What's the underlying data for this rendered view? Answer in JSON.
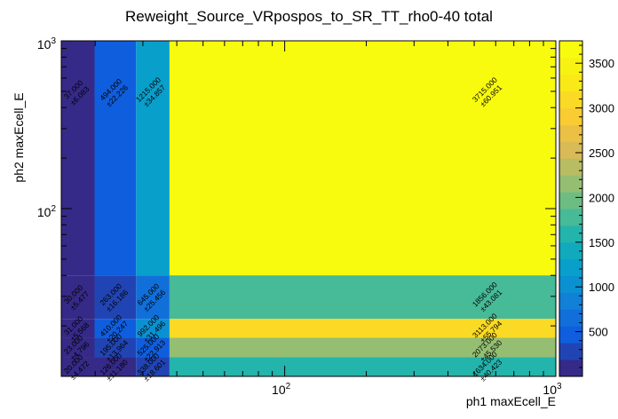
{
  "chart_data": {
    "type": "heatmap",
    "title": "Reweight_Source_VRpospos_to_SR_TT_rho0-40 total",
    "xlabel": "ph1 maxEcell_E",
    "ylabel": "ph2 maxEcell_E",
    "xscale": "log",
    "yscale": "log",
    "xlim": [
      15,
      1000
    ],
    "ylim": [
      10,
      1000
    ],
    "x_ticks": [
      {
        "value": 100,
        "base": "10",
        "exp": "2"
      },
      {
        "value": 1000,
        "base": "10",
        "exp": "3"
      }
    ],
    "y_ticks": [
      {
        "value": 100,
        "base": "10",
        "exp": "2"
      },
      {
        "value": 1000,
        "base": "10",
        "exp": "3"
      }
    ],
    "x_edges": [
      15,
      19.9,
      28.3,
      37.6,
      1000
    ],
    "y_edges": [
      10,
      13,
      17,
      22,
      40,
      1000
    ],
    "z_range": [
      0,
      3750
    ],
    "colorbar_ticks": [
      "500",
      "1000",
      "1500",
      "2000",
      "2500",
      "3000",
      "3500"
    ],
    "colorbar_tick_values": [
      500,
      1000,
      1500,
      2000,
      2500,
      3000,
      3500
    ],
    "cells": [
      {
        "xi": 3,
        "yi": 4,
        "value": 3715,
        "text": "3715.000",
        "err": "±60.951"
      },
      {
        "xi": 3,
        "yi": 3,
        "value": 1856,
        "text": "1856.000",
        "err": "±43.081"
      },
      {
        "xi": 3,
        "yi": 2,
        "value": 3113,
        "text": "3113.000",
        "err": "±55.794"
      },
      {
        "xi": 3,
        "yi": 1,
        "value": 2073,
        "text": "2073.000",
        "err": "±45.530"
      },
      {
        "xi": 3,
        "yi": 0,
        "value": 1634,
        "text": "1634.000",
        "err": "±40.423"
      },
      {
        "xi": 2,
        "yi": 4,
        "value": 1215,
        "text": "1215.000",
        "err": "±34.857"
      },
      {
        "xi": 2,
        "yi": 3,
        "value": 645,
        "text": "645.000",
        "err": "±25.456"
      },
      {
        "xi": 2,
        "yi": 2,
        "value": 992,
        "text": "992.000",
        "err": "±31.496"
      },
      {
        "xi": 2,
        "yi": 1,
        "value": 525,
        "text": "525.000",
        "err": "±22.913"
      },
      {
        "xi": 2,
        "yi": 0,
        "value": 338,
        "text": "338.000",
        "err": "±18.601"
      },
      {
        "xi": 1,
        "yi": 4,
        "value": 494,
        "text": "494.000",
        "err": "±22.226"
      },
      {
        "xi": 1,
        "yi": 3,
        "value": 263,
        "text": "263.000",
        "err": "±16.186"
      },
      {
        "xi": 1,
        "yi": 2,
        "value": 410,
        "text": "410.000",
        "err": "±20.247"
      },
      {
        "xi": 1,
        "yi": 1,
        "value": 195,
        "text": "195.000",
        "err": "±13.964"
      },
      {
        "xi": 1,
        "yi": 0,
        "value": 126,
        "text": "126.000",
        "err": "±11.180"
      },
      {
        "xi": 0,
        "yi": 4,
        "value": 37,
        "text": "37.000",
        "err": "±6.083"
      },
      {
        "xi": 0,
        "yi": 3,
        "value": 30,
        "text": "30.000",
        "err": "±5.477"
      },
      {
        "xi": 0,
        "yi": 2,
        "value": 31,
        "text": "31.000",
        "err": "±5.568"
      },
      {
        "xi": 0,
        "yi": 1,
        "value": 23,
        "text": "23.000",
        "err": "±4.796"
      },
      {
        "xi": 0,
        "yi": 0,
        "value": 20,
        "text": "20.000",
        "err": "±4.472"
      }
    ]
  }
}
